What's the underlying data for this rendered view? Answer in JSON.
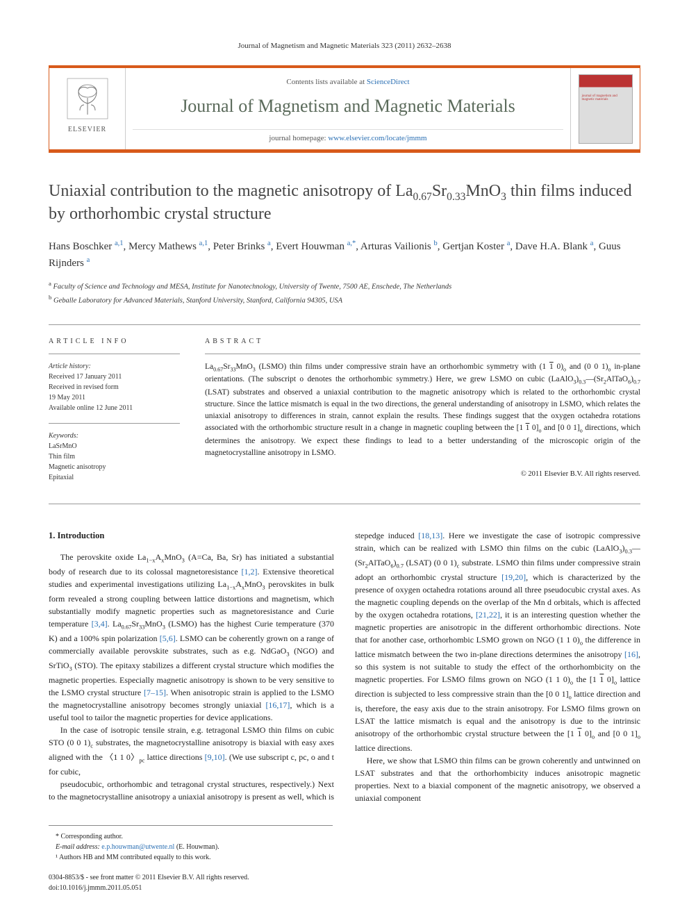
{
  "running_head": "Journal of Magnetism and Magnetic Materials 323 (2011) 2632–2638",
  "masthead": {
    "contents_prefix": "Contents lists available at ",
    "contents_link": "ScienceDirect",
    "journal_title": "Journal of Magnetism and Magnetic Materials",
    "homepage_prefix": "journal homepage: ",
    "homepage_link": "www.elsevier.com/locate/jmmm",
    "publisher": "ELSEVIER",
    "cover_text": "journal of magnetism and magnetic materials"
  },
  "article": {
    "title_html": "Uniaxial contribution to the magnetic anisotropy of La<sub>0.67</sub>Sr<sub>0.33</sub>MnO<sub>3</sub> thin films induced by orthorhombic crystal structure",
    "authors_html": "Hans Boschker <sup>a,1</sup>, Mercy Mathews <sup>a,1</sup>, Peter Brinks <sup>a</sup>, Evert Houwman <sup>a,*</sup>, Arturas Vailionis <sup>b</sup>, Gertjan Koster <sup>a</sup>, Dave H.A. Blank <sup>a</sup>, Guus Rijnders <sup>a</sup>",
    "affiliations": {
      "a": "Faculty of Science and Technology and MESA, Institute for Nanotechnology, University of Twente, 7500 AE, Enschede, The Netherlands",
      "b": "Geballe Laboratory for Advanced Materials, Stanford University, Stanford, California 94305, USA"
    }
  },
  "article_info": {
    "head": "article info",
    "history_label": "Article history:",
    "received": "Received 17 January 2011",
    "revised1": "Received in revised form",
    "revised2": "19 May 2011",
    "online": "Available online 12 June 2011",
    "keywords_label": "Keywords:",
    "keywords": [
      "LaSrMnO",
      "Thin film",
      "Magnetic anisotropy",
      "Epitaxial"
    ]
  },
  "abstract": {
    "head": "abstract",
    "body_html": "La<sub>0.67</sub>Sr<sub>33</sub>MnO<sub>3</sub> (LSMO) thin films under compressive strain have an orthorhombic symmetry with (1 <span class=\"overline\">1</span> 0)<sub>o</sub> and (0 0 1)<sub>o</sub> in-plane orientations. (The subscript o denotes the orthorhombic symmetry.) Here, we grew LSMO on cubic (LaAlO<sub>3</sub>)<sub>0.3</sub>—(Sr<sub>2</sub>AlTaO<sub>6</sub>)<sub>0.7</sub> (LSAT) substrates and observed a uniaxial contribution to the magnetic anisotropy which is related to the orthorhombic crystal structure. Since the lattice mismatch is equal in the two directions, the general understanding of anisotropy in LSMO, which relates the uniaxial anisotropy to differences in strain, cannot explain the results. These findings suggest that the oxygen octahedra rotations associated with the orthorhombic structure result in a change in magnetic coupling between the [1 <span class=\"overline\">1</span> 0]<sub>o</sub> and [0 0 1]<sub>o</sub> directions, which determines the anisotropy. We expect these findings to lead to a better understanding of the microscopic origin of the magnetocrystalline anisotropy in LSMO.",
    "copyright": "© 2011 Elsevier B.V. All rights reserved."
  },
  "body": {
    "section_head": "1. Introduction",
    "p1_html": "The perovskite oxide La<sub>1−x</sub>A<sub>x</sub>MnO<sub>3</sub> (A=Ca, Ba, Sr) has initiated a substantial body of research due to its colossal magnetoresistance <a class=\"cite\">[1,2]</a>. Extensive theoretical studies and experimental investigations utilizing La<sub>1−x</sub>A<sub>x</sub>MnO<sub>3</sub> perovskites in bulk form revealed a strong coupling between lattice distortions and magnetism, which substantially modify magnetic properties such as magnetoresistance and Curie temperature <a class=\"cite\">[3,4]</a>. La<sub>0.67</sub>Sr<sub>33</sub>MnO<sub>3</sub> (LSMO) has the highest Curie temperature (370 K) and a 100% spin polarization <a class=\"cite\">[5,6]</a>. LSMO can be coherently grown on a range of commercially available perovskite substrates, such as e.g. NdGaO<sub>3</sub> (NGO) and SrTiO<sub>3</sub> (STO). The epitaxy stabilizes a different crystal structure which modifies the magnetic properties. Especially magnetic anisotropy is shown to be very sensitive to the LSMO crystal structure <a class=\"cite\">[7–15]</a>. When anisotropic strain is applied to the LSMO the magnetocrystalline anisotropy becomes strongly uniaxial <a class=\"cite\">[16,17]</a>, which is a useful tool to tailor the magnetic properties for device applications.",
    "p2_html": "In the case of isotropic tensile strain, e.g. tetragonal LSMO thin films on cubic STO (0 0 1)<sub>c</sub> substrates, the magnetocrystalline anisotropy is biaxial with easy axes aligned with the <span class=\"angle\">〈1 1 0〉</span><sub>pc</sub> lattice directions <a class=\"cite\">[9,10]</a>. (We use subscript c, pc, o and t for cubic,",
    "p3_html": "pseudocubic, orthorhombic and tetragonal crystal structures, respectively.) Next to the magnetocrystalline anisotropy a uniaxial anisotropy is present as well, which is stepedge induced <a class=\"cite\">[18,13]</a>. Here we investigate the case of isotropic compressive strain, which can be realized with LSMO thin films on the cubic (LaAlO<sub>3</sub>)<sub>0.3</sub>—(Sr<sub>2</sub>AlTaO<sub>6</sub>)<sub>0.7</sub> (LSAT) (0 0 1)<sub>c</sub> substrate. LSMO thin films under compressive strain adopt an orthorhombic crystal structure <a class=\"cite\">[19,20]</a>, which is characterized by the presence of oxygen octahedra rotations around all three pseudocubic crystal axes. As the magnetic coupling depends on the overlap of the Mn d orbitals, which is affected by the oxygen octahedra rotations, <a class=\"cite\">[21,22]</a>, it is an interesting question whether the magnetic properties are anisotropic in the different orthorhombic directions. Note that for another case, orthorhombic LSMO grown on NGO (1 1 0)<sub>o</sub> the difference in lattice mismatch between the two in-plane directions determines the anisotropy <a class=\"cite\">[16]</a>, so this system is not suitable to study the effect of the orthorhombicity on the magnetic properties. For LSMO films grown on NGO (1 1 0)<sub>o</sub> the [1 <span class=\"overline\">1</span> 0]<sub>o</sub> lattice direction is subjected to less compressive strain than the [0 0 1]<sub>o</sub> lattice direction and is, therefore, the easy axis due to the strain anisotropy. For LSMO films grown on LSAT the lattice mismatch is equal and the anisotropy is due to the intrinsic anisotropy of the orthorhombic crystal structure between the [1 <span class=\"overline\">1</span> 0]<sub>o</sub> and [0 0 1]<sub>o</sub> lattice directions.",
    "p4_html": "Here, we show that LSMO thin films can be grown coherently and untwinned on LSAT substrates and that the orthorhombicity induces anisotropic magnetic properties. Next to a biaxial component of the magnetic anisotropy, we observed a uniaxial component"
  },
  "footnotes": {
    "corr": "* Corresponding author.",
    "email_label": "E-mail address: ",
    "email": "e.p.houwman@utwente.nl",
    "email_name": " (E. Houwman).",
    "contrib": "¹ Authors HB and MM contributed equally to this work.",
    "issn": "0304-8853/$ - see front matter © 2011 Elsevier B.V. All rights reserved.",
    "doi": "doi:10.1016/j.jmmm.2011.05.051"
  },
  "colors": {
    "accent": "#d85a1a",
    "link": "#2a6fb3",
    "journal_title": "#5a6a5a"
  }
}
